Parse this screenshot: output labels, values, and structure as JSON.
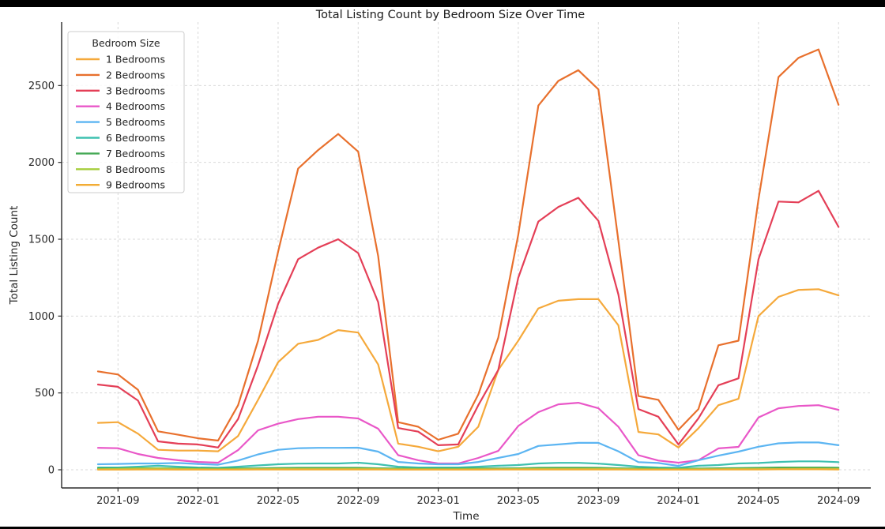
{
  "chart_data": {
    "type": "line",
    "title": "Total Listing Count by Bedroom Size Over Time",
    "xlabel": "Time",
    "ylabel": "Total Listing Count",
    "legend_title": "Bedroom Size",
    "legend_position": "upper left",
    "grid": true,
    "grid_color": "#d9d9d9",
    "background_color": "#ffffff",
    "axis_color": "#262626",
    "ylim": [
      -120,
      2915
    ],
    "y_ticks": [
      0,
      500,
      1000,
      1500,
      2000,
      2500
    ],
    "x_tick_labels": [
      "2021-09",
      "2022-01",
      "2022-05",
      "2022-09",
      "2023-01",
      "2023-05",
      "2023-09",
      "2024-01",
      "2024-05",
      "2024-09"
    ],
    "x": [
      "2021-08",
      "2021-09",
      "2021-10",
      "2021-11",
      "2021-12",
      "2022-01",
      "2022-02",
      "2022-03",
      "2022-04",
      "2022-05",
      "2022-06",
      "2022-07",
      "2022-08",
      "2022-09",
      "2022-10",
      "2022-11",
      "2022-12",
      "2023-01",
      "2023-02",
      "2023-03",
      "2023-04",
      "2023-05",
      "2023-06",
      "2023-07",
      "2023-08",
      "2023-09",
      "2023-10",
      "2023-11",
      "2023-12",
      "2024-01",
      "2024-02",
      "2024-03",
      "2024-04",
      "2024-05",
      "2024-06",
      "2024-07",
      "2024-08",
      "2024-09"
    ],
    "series": [
      {
        "name": "1 Bedrooms",
        "color": "#F5A93B",
        "values": [
          305,
          310,
          235,
          130,
          125,
          125,
          120,
          220,
          455,
          700,
          820,
          845,
          909,
          893,
          685,
          170,
          150,
          120,
          150,
          280,
          650,
          840,
          1050,
          1100,
          1110,
          1110,
          940,
          246,
          230,
          145,
          270,
          420,
          462,
          1000,
          1125,
          1170,
          1175,
          1135
        ]
      },
      {
        "name": "2 Bedrooms",
        "color": "#E8702D",
        "values": [
          640,
          620,
          520,
          250,
          228,
          205,
          190,
          420,
          840,
          1420,
          1960,
          2080,
          2185,
          2070,
          1390,
          310,
          280,
          195,
          235,
          490,
          860,
          1530,
          2370,
          2530,
          2600,
          2475,
          1490,
          480,
          455,
          260,
          395,
          810,
          840,
          1760,
          2555,
          2680,
          2735,
          2375
        ]
      },
      {
        "name": "3 Bedrooms",
        "color": "#E43F57",
        "values": [
          555,
          540,
          450,
          185,
          170,
          165,
          145,
          330,
          680,
          1080,
          1370,
          1445,
          1500,
          1410,
          1090,
          272,
          248,
          160,
          165,
          420,
          650,
          1250,
          1615,
          1710,
          1770,
          1620,
          1140,
          395,
          345,
          165,
          335,
          550,
          595,
          1370,
          1745,
          1740,
          1815,
          1580
        ]
      },
      {
        "name": "4 Bedrooms",
        "color": "#E957C8",
        "values": [
          143,
          140,
          103,
          77,
          62,
          51,
          46,
          128,
          257,
          300,
          330,
          345,
          345,
          334,
          267,
          95,
          62,
          41,
          41,
          77,
          123,
          285,
          375,
          426,
          436,
          400,
          280,
          95,
          60,
          46,
          62,
          139,
          149,
          340,
          400,
          415,
          420,
          390
        ]
      },
      {
        "name": "5 Bedrooms",
        "color": "#5CB5F2",
        "values": [
          36,
          38,
          41,
          41,
          44,
          38,
          33,
          60,
          100,
          130,
          140,
          143,
          143,
          144,
          118,
          51,
          41,
          36,
          36,
          51,
          77,
          103,
          155,
          165,
          175,
          175,
          120,
          50,
          44,
          25,
          62,
          92,
          118,
          150,
          172,
          178,
          178,
          160
        ]
      },
      {
        "name": "6 Bedrooms",
        "color": "#3EC0B0",
        "values": [
          15,
          15,
          20,
          26,
          20,
          15,
          13,
          20,
          28,
          36,
          40,
          41,
          41,
          46,
          36,
          20,
          15,
          15,
          15,
          20,
          26,
          31,
          41,
          45,
          45,
          40,
          31,
          20,
          15,
          13,
          26,
          31,
          41,
          44,
          51,
          55,
          55,
          50
        ]
      },
      {
        "name": "7 Bedrooms",
        "color": "#43A854",
        "values": [
          8,
          8,
          10,
          10,
          8,
          8,
          7,
          8,
          10,
          12,
          13,
          13,
          13,
          13,
          10,
          8,
          7,
          7,
          7,
          8,
          9,
          10,
          13,
          14,
          14,
          13,
          10,
          8,
          7,
          6,
          8,
          10,
          11,
          13,
          15,
          15,
          15,
          14
        ]
      },
      {
        "name": "8 Bedrooms",
        "color": "#A6CE3D",
        "values": [
          4,
          5,
          8,
          8,
          5,
          4,
          3,
          4,
          5,
          6,
          6,
          6,
          6,
          6,
          5,
          4,
          3,
          3,
          3,
          4,
          4,
          5,
          6,
          6,
          6,
          6,
          5,
          4,
          3,
          3,
          4,
          4,
          5,
          6,
          6,
          7,
          7,
          6
        ]
      },
      {
        "name": "9 Bedrooms",
        "color": "#F2AC34",
        "values": [
          1,
          1,
          2,
          2,
          1,
          1,
          1,
          1,
          2,
          2,
          2,
          2,
          2,
          2,
          2,
          1,
          1,
          1,
          1,
          1,
          2,
          2,
          2,
          2,
          2,
          2,
          2,
          1,
          1,
          1,
          1,
          2,
          2,
          2,
          3,
          3,
          3,
          2
        ]
      }
    ]
  }
}
